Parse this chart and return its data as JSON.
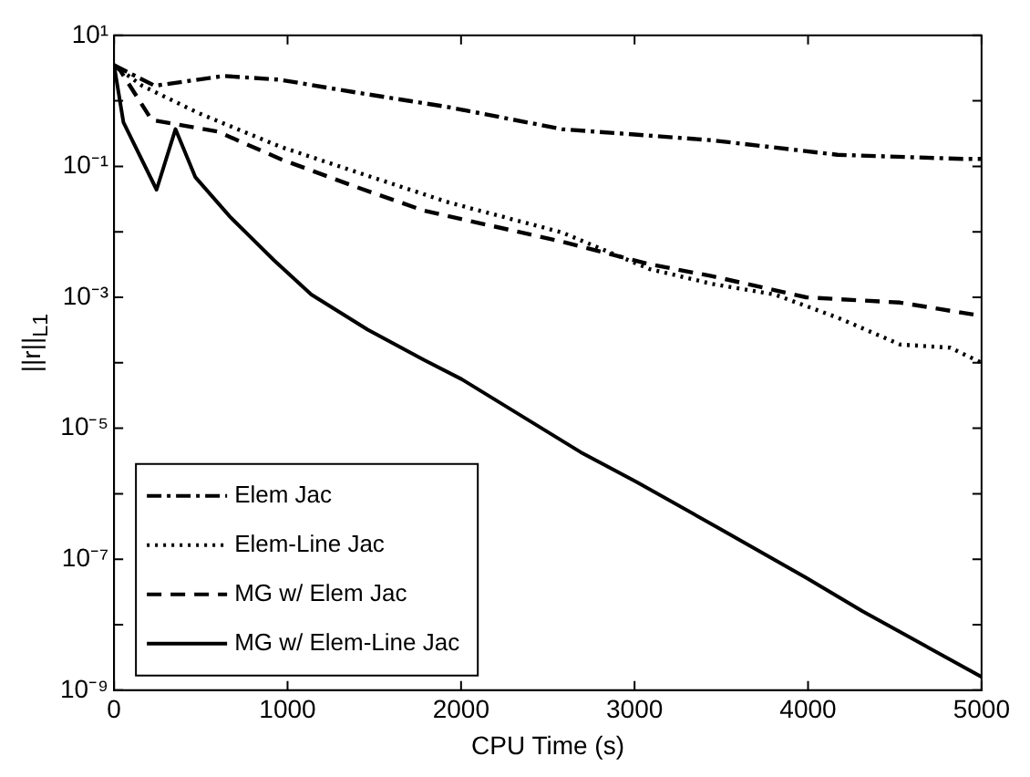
{
  "chart_data": {
    "type": "line",
    "xlabel": "CPU Time (s)",
    "ylabel": "||r||$_{L1}$",
    "log": "y",
    "grid": false,
    "legend": "bottom left",
    "marker": "none",
    "xlim": [
      0,
      5000
    ],
    "xticks": [
      0,
      1000,
      2000,
      3000,
      4000,
      5000
    ],
    "ylim": [
      1e-09,
      10
    ],
    "yticks": [
      {
        "value": 10,
        "label": "10¹"
      },
      {
        "value": 1,
        "label": null
      },
      {
        "value": 0.1,
        "label": "10⁻¹"
      },
      {
        "value": 0.01,
        "label": null
      },
      {
        "value": 0.001,
        "label": "10⁻³"
      },
      {
        "value": 0.0001,
        "label": null
      },
      {
        "value": 1e-05,
        "label": "10⁻⁵"
      },
      {
        "value": 1e-06,
        "label": null
      },
      {
        "value": 1e-07,
        "label": "10⁻⁷"
      },
      {
        "value": 1e-08,
        "label": null
      },
      {
        "value": 1e-09,
        "label": "10⁻⁹"
      }
    ],
    "series": [
      {
        "name": "Elem Jac",
        "color": "#000000",
        "line_style": "dashdot",
        "x": [
          0,
          235,
          632,
          957,
          1390,
          1931,
          2581,
          3448,
          4170,
          4892,
          5000
        ],
        "values": [
          3.5,
          1.7,
          2.4,
          2.1,
          1.35,
          0.8,
          0.37,
          0.25,
          0.15,
          0.13,
          0.13
        ]
      },
      {
        "name": "Elem-Line Jac",
        "color": "#000000",
        "line_style": "dotted",
        "x": [
          0,
          162,
          487,
          957,
          1390,
          1931,
          2581,
          3087,
          3448,
          3809,
          4170,
          4531,
          4820,
          5000
        ],
        "values": [
          3.5,
          1.7,
          0.65,
          0.2,
          0.083,
          0.028,
          0.0098,
          0.0027,
          0.0016,
          0.0011,
          0.00049,
          0.00019,
          0.00017,
          0.0001
        ]
      },
      {
        "name": "MG w/ Elem Jac",
        "color": "#000000",
        "line_style": "dashed",
        "x": [
          0,
          36,
          217,
          596,
          957,
          1390,
          1787,
          2581,
          3087,
          3448,
          3989,
          4531,
          4964,
          5000
        ],
        "values": [
          3.5,
          2.9,
          0.51,
          0.34,
          0.13,
          0.049,
          0.021,
          0.0071,
          0.0032,
          0.0021,
          0.001,
          0.00083,
          0.00054,
          0.0005
        ]
      },
      {
        "name": "MG w/ Elem-Line Jac",
        "color": "#000000",
        "line_style": "solid",
        "x": [
          0,
          54,
          245,
          354,
          469,
          668,
          921,
          1137,
          1462,
          1787,
          2004,
          2690,
          3014,
          3484,
          3989,
          4314,
          5000
        ],
        "values": [
          3.5,
          0.47,
          0.044,
          0.37,
          0.068,
          0.017,
          0.0037,
          0.0011,
          0.00032,
          0.00011,
          5.6e-05,
          4.3e-06,
          1.5e-06,
          3e-07,
          5.2e-08,
          1.6e-08,
          1.6e-09
        ]
      }
    ]
  }
}
